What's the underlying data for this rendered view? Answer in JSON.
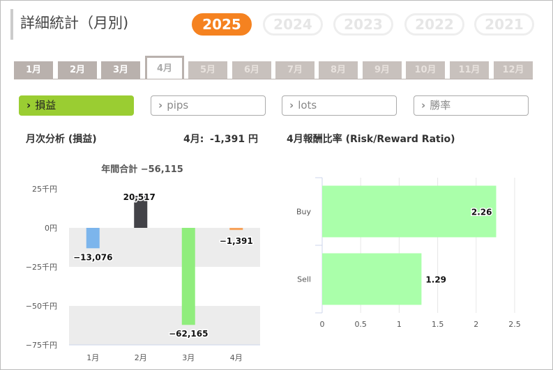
{
  "header": {
    "title": "詳細統計（月別)"
  },
  "years": [
    "2025",
    "2024",
    "2023",
    "2022",
    "2021"
  ],
  "active_year": "2025",
  "months": [
    "1月",
    "2月",
    "3月",
    "4月",
    "5月",
    "6月",
    "7月",
    "8月",
    "9月",
    "10月",
    "11月",
    "12月"
  ],
  "active_month": "4月",
  "filters": [
    {
      "label": "損益",
      "active": true
    },
    {
      "label": "pips",
      "active": false
    },
    {
      "label": "lots",
      "active": false
    },
    {
      "label": "勝率",
      "active": false
    }
  ],
  "monthly": {
    "heading": "月次分析 (損益)",
    "current_label": "4月:",
    "current_value": "-1,391 円"
  },
  "rr": {
    "heading": "4月報酬比率 (Risk/Reward Ratio)"
  },
  "chart_data": [
    {
      "type": "bar",
      "title": "年間合計 −56,115",
      "categories": [
        "1月",
        "2月",
        "3月",
        "4月"
      ],
      "values": [
        -13076,
        20517,
        -62165,
        -1391
      ],
      "value_labels": [
        "−13,076",
        "20,517",
        "−62,165",
        "−1,391"
      ],
      "bar_colors": [
        "#7cb5ec",
        "#434348",
        "#90ed7d",
        "#f7a35c"
      ],
      "y_ticks": [
        25000,
        0,
        -25000,
        -50000,
        -75000
      ],
      "y_tick_labels": [
        "25千円",
        "0円",
        "−25千円",
        "−50千円",
        "−75千円"
      ],
      "ylim": [
        -75000,
        25000
      ],
      "grid": "alternating bands"
    },
    {
      "type": "bar",
      "orientation": "horizontal",
      "categories": [
        "Buy",
        "Sell"
      ],
      "values": [
        2.26,
        1.29
      ],
      "value_labels": [
        "2.26",
        "1.29"
      ],
      "bar_color": "#aaffaa",
      "x_ticks": [
        0,
        0.5,
        1,
        1.5,
        2,
        2.5
      ],
      "x_tick_labels": [
        "0",
        "0.5",
        "1",
        "1.5",
        "2",
        "2.5"
      ],
      "xlim": [
        0,
        2.5
      ],
      "grid": true
    }
  ]
}
